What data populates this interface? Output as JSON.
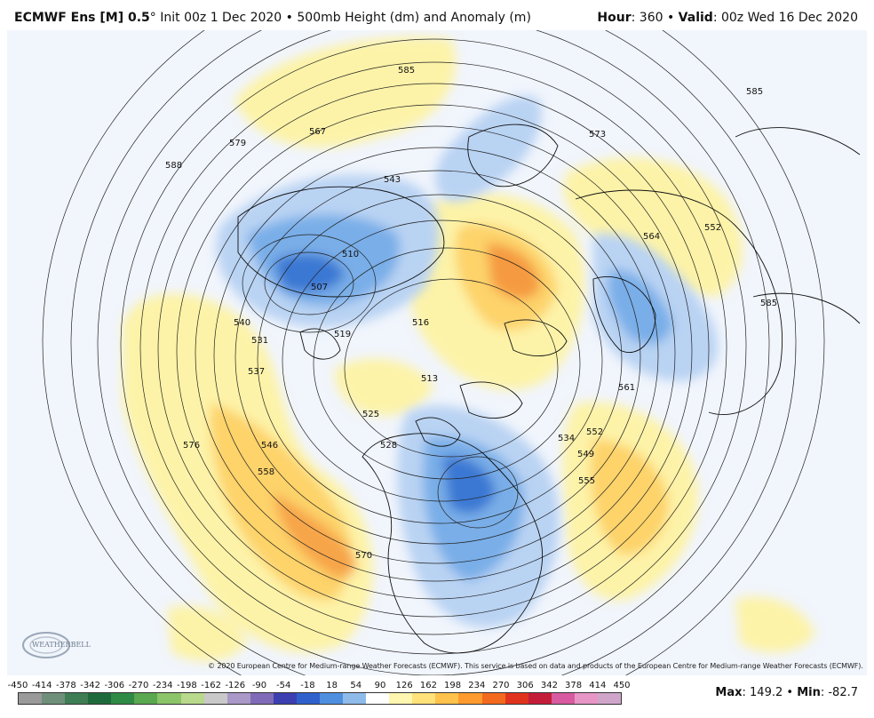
{
  "header": {
    "model": "ECMWF Ens [M] 0.5",
    "degree": "°",
    "init": " Init 00z 1 Dec 2020 • 500mb Height (dm) and Anomaly (m)",
    "hour_label": "Hour",
    "hour_value": ": 360 • ",
    "valid_label": "Valid",
    "valid_value": ": 00z Wed 16 Dec 2020"
  },
  "map": {
    "contour_labels": [
      "585",
      "567",
      "579",
      "588",
      "543",
      "510",
      "507",
      "540",
      "531",
      "537",
      "546",
      "558",
      "570",
      "576",
      "519",
      "516",
      "513",
      "525",
      "528",
      "573",
      "564",
      "552",
      "585",
      "561",
      "534",
      "549",
      "555",
      "552",
      "585"
    ],
    "anomaly_colors": {
      "positive_light": "#fdf3a8",
      "positive_mid": "#fdd36b",
      "positive_strong": "#f79a3f",
      "negative_light": "#b9d3f3",
      "negative_mid": "#79aee8",
      "negative_strong": "#3a78d3"
    }
  },
  "copyright": "© 2020 European Centre for Medium-range Weather Forecasts (ECMWF). This service is based on data and products of the European Centre for Medium-range Weather Forecasts (ECMWF).",
  "logo": {
    "text": "WEATHERBELL"
  },
  "colorbar": {
    "labels": [
      "-450",
      "-414",
      "-378",
      "-342",
      "-306",
      "-270",
      "-234",
      "-198",
      "-162",
      "-126",
      "-90",
      "-54",
      "-18",
      "18",
      "54",
      "90",
      "126",
      "162",
      "198",
      "234",
      "270",
      "306",
      "342",
      "378",
      "414",
      "450"
    ],
    "colors": [
      "#9a9a9a",
      "#6f8f7a",
      "#3f7d55",
      "#1f6a3c",
      "#2f8a45",
      "#5aa84f",
      "#8cc46a",
      "#b9d98c",
      "#c9c9c9",
      "#a998c8",
      "#7f6bb7",
      "#3c3fb0",
      "#2f60cc",
      "#4f8fe0",
      "#8fbbea",
      "#ffffff",
      "#fff6b0",
      "#ffe27a",
      "#ffc24a",
      "#ff9a2e",
      "#f36a1e",
      "#e0331e",
      "#c41d3a",
      "#d85aa0",
      "#e796c6",
      "#cfa6c9"
    ]
  },
  "stats": {
    "max_label": "Max",
    "max_value": ": 149.2 • ",
    "min_label": "Min",
    "min_value": ": -82.7"
  }
}
